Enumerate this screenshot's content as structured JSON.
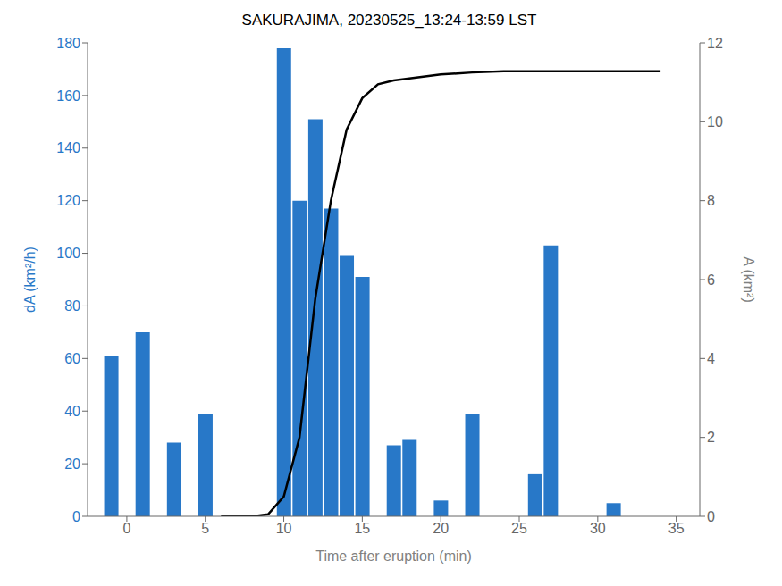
{
  "chart_data": {
    "type": "bar",
    "title": "SAKURAJIMA, 20230525_13:24-13:59 LST",
    "xlabel": "Time after eruption (min)",
    "ylabel": "dA (km²/h)",
    "y2label": "A (km²)",
    "xlim": [
      -2.5,
      36.5
    ],
    "xticks": [
      0,
      5,
      10,
      15,
      20,
      25,
      30,
      35
    ],
    "ylim": [
      0,
      180
    ],
    "yticks": [
      0,
      20,
      40,
      60,
      80,
      100,
      120,
      140,
      160,
      180
    ],
    "y2lim": [
      0,
      12
    ],
    "y2ticks": [
      0,
      2,
      4,
      6,
      8,
      10,
      12
    ],
    "grid": false,
    "series": [
      {
        "type": "bar",
        "color": "#2878c8",
        "x": [
          -1,
          1,
          3,
          5,
          8,
          10,
          11,
          12,
          13,
          14,
          15,
          17,
          18,
          20,
          22,
          26,
          27,
          31,
          33
        ],
        "values": [
          61,
          70,
          28,
          39,
          0,
          178,
          120,
          151,
          117,
          99,
          91,
          27,
          29,
          6,
          39,
          16,
          103,
          5,
          0
        ]
      },
      {
        "type": "line",
        "axis": "y2",
        "color": "#000000",
        "x": [
          6,
          8,
          9,
          10,
          11,
          12,
          13,
          14,
          15,
          16,
          17,
          18,
          19,
          20,
          22,
          24,
          26,
          28,
          30,
          32,
          34
        ],
        "values": [
          0,
          0,
          0.05,
          0.5,
          2.0,
          5.5,
          8.0,
          9.8,
          10.6,
          10.95,
          11.05,
          11.1,
          11.15,
          11.2,
          11.25,
          11.28,
          11.28,
          11.28,
          11.28,
          11.28,
          11.28
        ]
      }
    ]
  }
}
